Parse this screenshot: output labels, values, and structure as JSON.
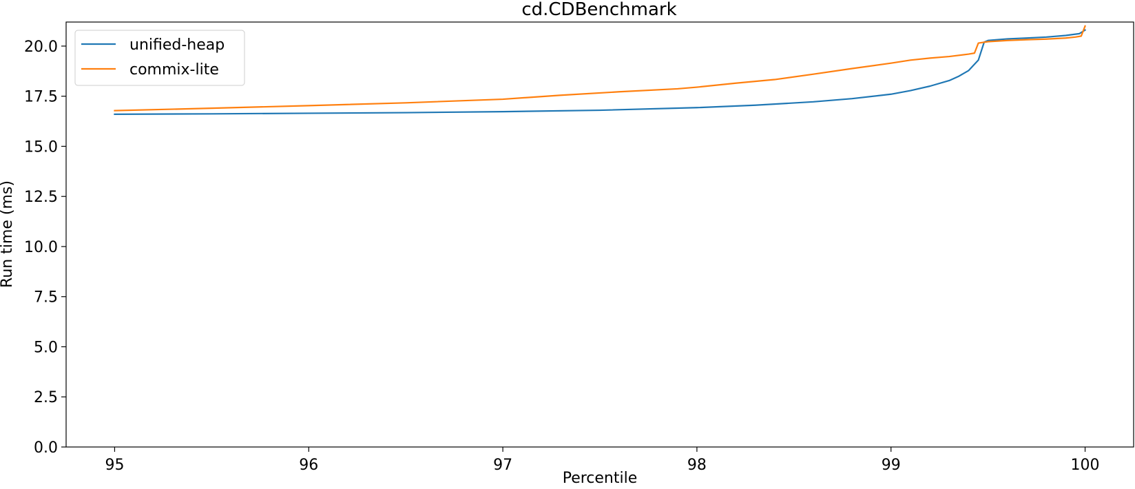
{
  "chart_data": {
    "type": "line",
    "title": "cd.CDBenchmark",
    "xlabel": "Percentile",
    "ylabel": "Run time (ms)",
    "xlim": [
      94.75,
      100.25
    ],
    "ylim": [
      0.0,
      21.2
    ],
    "xticks": [
      95,
      96,
      97,
      98,
      99,
      100
    ],
    "xtick_labels": [
      "95",
      "96",
      "97",
      "98",
      "99",
      "100"
    ],
    "yticks": [
      0.0,
      2.5,
      5.0,
      7.5,
      10.0,
      12.5,
      15.0,
      17.5,
      20.0
    ],
    "ytick_labels": [
      "0.0",
      "2.5",
      "5.0",
      "7.5",
      "10.0",
      "12.5",
      "15.0",
      "17.5",
      "20.0"
    ],
    "grid": false,
    "legend_position": "top-left",
    "series": [
      {
        "name": "unified-heap",
        "color": "#1f77b4",
        "x": [
          95.0,
          95.5,
          96.0,
          96.5,
          97.0,
          97.5,
          98.0,
          98.3,
          98.6,
          98.8,
          99.0,
          99.1,
          99.2,
          99.3,
          99.35,
          99.4,
          99.45,
          99.48,
          99.5,
          99.55,
          99.6,
          99.7,
          99.8,
          99.9,
          99.97,
          100.0
        ],
        "y": [
          16.6,
          16.62,
          16.65,
          16.68,
          16.73,
          16.8,
          16.93,
          17.05,
          17.22,
          17.38,
          17.6,
          17.78,
          18.0,
          18.28,
          18.5,
          18.78,
          19.3,
          20.2,
          20.28,
          20.32,
          20.36,
          20.4,
          20.45,
          20.53,
          20.62,
          20.8
        ]
      },
      {
        "name": "commix-lite",
        "color": "#ff7f0e",
        "x": [
          95.0,
          95.5,
          96.0,
          96.5,
          97.0,
          97.3,
          97.6,
          97.9,
          98.0,
          98.2,
          98.4,
          98.6,
          98.8,
          99.0,
          99.1,
          99.2,
          99.3,
          99.4,
          99.43,
          99.45,
          99.5,
          99.6,
          99.7,
          99.8,
          99.9,
          99.95,
          99.98,
          100.0
        ],
        "y": [
          16.78,
          16.9,
          17.03,
          17.17,
          17.35,
          17.55,
          17.72,
          17.87,
          17.95,
          18.15,
          18.33,
          18.6,
          18.88,
          19.15,
          19.3,
          19.4,
          19.48,
          19.6,
          19.65,
          20.15,
          20.22,
          20.28,
          20.32,
          20.35,
          20.4,
          20.45,
          20.5,
          21.0
        ]
      }
    ]
  }
}
